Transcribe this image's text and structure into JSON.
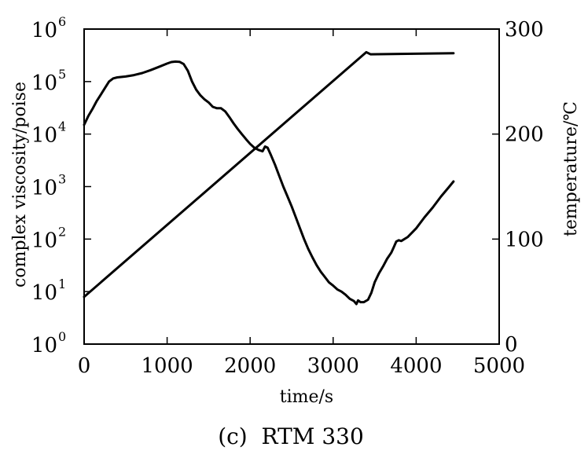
{
  "chart_data": {
    "type": "line",
    "caption": "(c)  RTM 330",
    "xlabel": "time/s",
    "ylabel_left": "complex viscosity/poise",
    "ylabel_right": "temperature/℃",
    "xlim": [
      0,
      5000
    ],
    "xticks": [
      0,
      1000,
      2000,
      3000,
      4000,
      5000
    ],
    "ylim_left_log10": [
      0,
      6
    ],
    "yticks_left": [
      {
        "base": "10",
        "exp": "0",
        "log10": 0
      },
      {
        "base": "10",
        "exp": "1",
        "log10": 1
      },
      {
        "base": "10",
        "exp": "2",
        "log10": 2
      },
      {
        "base": "10",
        "exp": "3",
        "log10": 3
      },
      {
        "base": "10",
        "exp": "4",
        "log10": 4
      },
      {
        "base": "10",
        "exp": "5",
        "log10": 5
      },
      {
        "base": "10",
        "exp": "6",
        "log10": 6
      }
    ],
    "ylim_right": [
      0,
      300
    ],
    "yticks_right": [
      0,
      100,
      200,
      300
    ],
    "yscale_left": "log",
    "series": [
      {
        "axis": "left",
        "points": [
          [
            0,
            15000
          ],
          [
            50,
            22000
          ],
          [
            100,
            30000
          ],
          [
            150,
            42000
          ],
          [
            200,
            56000
          ],
          [
            250,
            75000
          ],
          [
            300,
            100000
          ],
          [
            350,
            115000
          ],
          [
            400,
            120000
          ],
          [
            500,
            125000
          ],
          [
            600,
            133000
          ],
          [
            700,
            145000
          ],
          [
            800,
            165000
          ],
          [
            900,
            190000
          ],
          [
            1000,
            220000
          ],
          [
            1050,
            235000
          ],
          [
            1100,
            240000
          ],
          [
            1150,
            238000
          ],
          [
            1200,
            215000
          ],
          [
            1250,
            160000
          ],
          [
            1300,
            100000
          ],
          [
            1350,
            70000
          ],
          [
            1400,
            55000
          ],
          [
            1450,
            46000
          ],
          [
            1500,
            40000
          ],
          [
            1550,
            33000
          ],
          [
            1600,
            31000
          ],
          [
            1650,
            31000
          ],
          [
            1700,
            27000
          ],
          [
            1750,
            21000
          ],
          [
            1800,
            16000
          ],
          [
            1850,
            12500
          ],
          [
            1900,
            10000
          ],
          [
            1950,
            8000
          ],
          [
            2000,
            6500
          ],
          [
            2050,
            5500
          ],
          [
            2100,
            5000
          ],
          [
            2150,
            4700
          ],
          [
            2180,
            5800
          ],
          [
            2210,
            5500
          ],
          [
            2250,
            4000
          ],
          [
            2300,
            2600
          ],
          [
            2350,
            1600
          ],
          [
            2400,
            1000
          ],
          [
            2450,
            650
          ],
          [
            2500,
            420
          ],
          [
            2550,
            260
          ],
          [
            2600,
            160
          ],
          [
            2650,
            100
          ],
          [
            2700,
            65
          ],
          [
            2750,
            45
          ],
          [
            2800,
            32
          ],
          [
            2850,
            24
          ],
          [
            2900,
            19
          ],
          [
            2950,
            15
          ],
          [
            3000,
            13
          ],
          [
            3050,
            11
          ],
          [
            3100,
            10
          ],
          [
            3150,
            8.7
          ],
          [
            3200,
            7.3
          ],
          [
            3250,
            6.6
          ],
          [
            3280,
            5.8
          ],
          [
            3300,
            6.8
          ],
          [
            3330,
            6.3
          ],
          [
            3370,
            6.3
          ],
          [
            3420,
            7.0
          ],
          [
            3460,
            9.5
          ],
          [
            3500,
            15
          ],
          [
            3550,
            22
          ],
          [
            3600,
            30
          ],
          [
            3650,
            42
          ],
          [
            3700,
            55
          ],
          [
            3730,
            70
          ],
          [
            3760,
            90
          ],
          [
            3790,
            95
          ],
          [
            3820,
            92
          ],
          [
            3900,
            110
          ],
          [
            4000,
            160
          ],
          [
            4100,
            260
          ],
          [
            4200,
            400
          ],
          [
            4300,
            650
          ],
          [
            4400,
            1000
          ],
          [
            4450,
            1250
          ]
        ]
      },
      {
        "axis": "right",
        "points": [
          [
            0,
            45
          ],
          [
            3400,
            278
          ],
          [
            3450,
            276
          ],
          [
            4450,
            277
          ]
        ]
      }
    ]
  }
}
